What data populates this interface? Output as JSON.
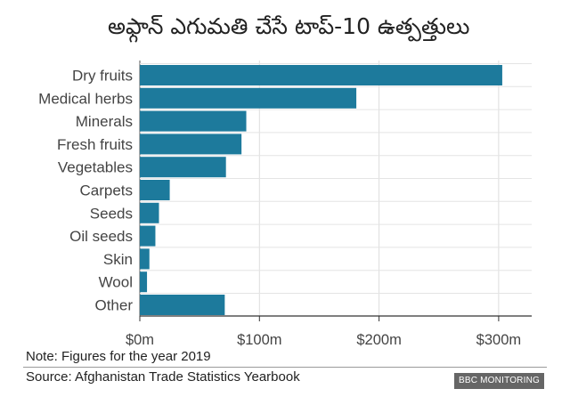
{
  "chart_data": {
    "type": "bar",
    "orientation": "horizontal",
    "title": "అఫ్గాన్ ఎగుమతి చేసే టాప్-10 ఉత్పత్తులు",
    "categories": [
      "Dry fruits",
      "Medical herbs",
      "Minerals",
      "Fresh fruits",
      "Vegetables",
      "Carpets",
      "Seeds",
      "Oil seeds",
      "Skin",
      "Wool",
      "Other"
    ],
    "values": [
      303,
      181,
      89,
      85,
      72,
      25,
      16,
      13,
      8,
      6,
      71
    ],
    "unit": "$ million",
    "xlim": [
      0,
      325
    ],
    "xticks": [
      0,
      100,
      200,
      300
    ],
    "xtick_labels": [
      "$0m",
      "$100m",
      "$200m",
      "$300m"
    ],
    "grid": true,
    "bar_color": "#1d7a9c"
  },
  "footer": {
    "note": "Note: Figures for the year 2019",
    "source": "Source: Afghanistan Trade Statistics Yearbook",
    "brand": "BBC MONITORING"
  }
}
